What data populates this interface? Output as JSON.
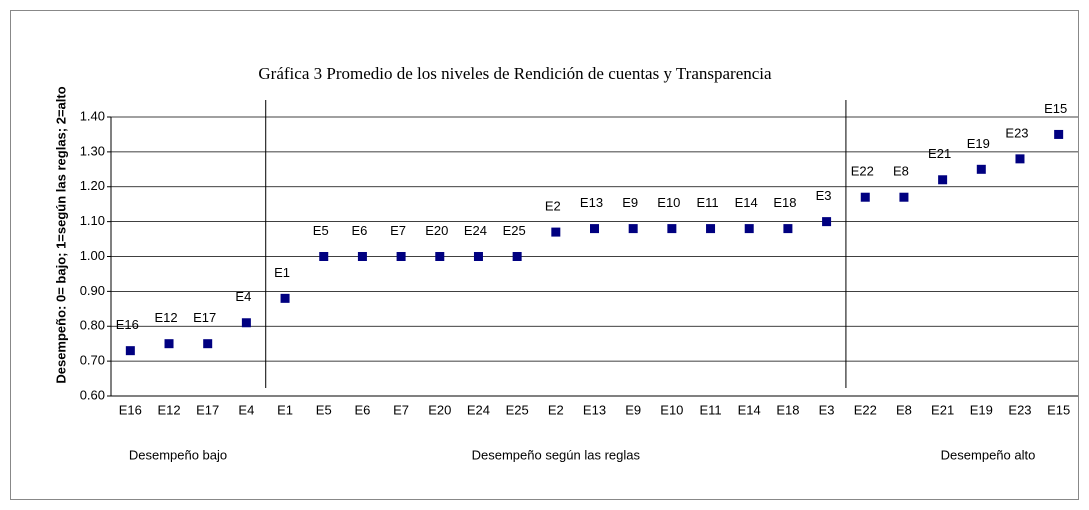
{
  "chart_data": {
    "type": "scatter",
    "title": "Gráfica 3 Promedio de los niveles de Rendición de cuentas y  Transparencia",
    "y_label": "Desempeño: 0= bajo; 1=según las reglas; 2=alto",
    "categories": [
      "E16",
      "E12",
      "E17",
      "E4",
      "E1",
      "E5",
      "E6",
      "E7",
      "E20",
      "E24",
      "E25",
      "E2",
      "E13",
      "E9",
      "E10",
      "E11",
      "E14",
      "E18",
      "E3",
      "E22",
      "E8",
      "E21",
      "E19",
      "E23",
      "E15"
    ],
    "values": [
      0.73,
      0.75,
      0.75,
      0.81,
      0.88,
      1.0,
      1.0,
      1.0,
      1.0,
      1.0,
      1.0,
      1.07,
      1.08,
      1.08,
      1.08,
      1.08,
      1.08,
      1.08,
      1.1,
      1.17,
      1.17,
      1.22,
      1.25,
      1.28,
      1.35
    ],
    "color": "#000080",
    "ylim": [
      0.6,
      1.4
    ],
    "yticks": [
      {
        "value": 0.6,
        "label": "0.60"
      },
      {
        "value": 0.7,
        "label": "0.70"
      },
      {
        "value": 0.8,
        "label": "0.80"
      },
      {
        "value": 0.9,
        "label": "0.90"
      },
      {
        "value": 1.0,
        "label": "1.00"
      },
      {
        "value": 1.1,
        "label": "1.10"
      },
      {
        "value": 1.2,
        "label": "1.20"
      },
      {
        "value": 1.3,
        "label": "1.30"
      },
      {
        "value": 1.4,
        "label": "1.40"
      }
    ],
    "grid": true,
    "groups": [
      "Desempeño bajo",
      "Desempeño según las reglas",
      "Desempeño alto"
    ]
  }
}
